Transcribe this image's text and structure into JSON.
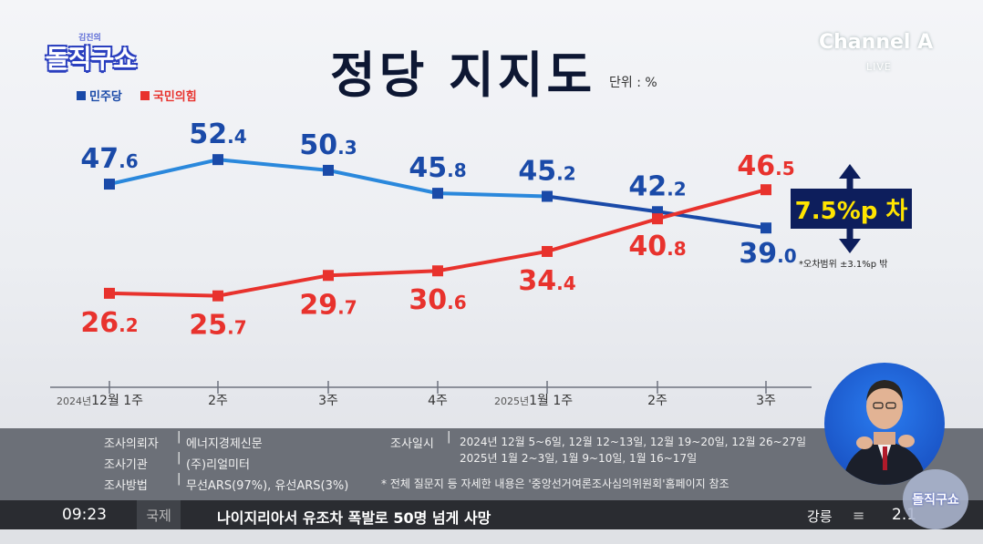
{
  "brand": {
    "show_small": "김진의",
    "show_name": "돌직구쇼",
    "channel": "Channel A",
    "live": "LIVE"
  },
  "title": "정당 지지도",
  "unit": "단위 : %",
  "colors": {
    "democratic": "#1a4aa8",
    "ppp": "#e8322d",
    "blue_line": "#2a88dc",
    "gap_bg": "#0d1e5c",
    "gap_text": "#ffe400"
  },
  "chart_data": {
    "type": "line",
    "title": "정당 지지도",
    "categories": [
      "2024년 12월 1주",
      "2주",
      "3주",
      "4주",
      "2025년 1월 1주",
      "2주",
      "3주"
    ],
    "x_ticks": [
      {
        "prefix": "2024년",
        "main": "12월 1주"
      },
      {
        "prefix": "",
        "main": "2주"
      },
      {
        "prefix": "",
        "main": "3주"
      },
      {
        "prefix": "",
        "main": "4주"
      },
      {
        "prefix": "2025년",
        "main": "1월 1주"
      },
      {
        "prefix": "",
        "main": "2주"
      },
      {
        "prefix": "",
        "main": "3주"
      }
    ],
    "series": [
      {
        "name": "민주당",
        "color": "#1a4aa8",
        "values": [
          47.6,
          52.4,
          50.3,
          45.8,
          45.2,
          42.2,
          39.0
        ]
      },
      {
        "name": "국민의힘",
        "color": "#e8322d",
        "values": [
          26.2,
          25.7,
          29.7,
          30.6,
          34.4,
          40.8,
          46.5
        ]
      }
    ],
    "annotation": "7.5%p 차",
    "note": "*오차범위 ±3.1%p 밖",
    "grid": false,
    "legend": "top-left"
  },
  "footer": {
    "client_label": "조사의뢰자",
    "client_value": "에너지경제신문",
    "agency_label": "조사기관",
    "agency_value": "(주)리얼미터",
    "method_label": "조사방법",
    "method_value": "무선ARS(97%), 유선ARS(3%)",
    "dates_label": "조사일시",
    "dates_line1": "2024년 12월 5~6일, 12월 12~13일, 12월 19~20일, 12월 26~27일",
    "dates_line2": "2025년 1월 2~3일, 1월 9~10일, 1월 16~17일",
    "note": "* 전체 질문지 등 자세한 내용은 '중앙선거여론조사심의위원회'홈페이지 참조"
  },
  "ticker": {
    "time": "09:23",
    "category": "국제",
    "headline": "나이지리아서 유조차 폭발로 50명 넘게 사망",
    "weather_city": "강릉",
    "menu_icon": "≡",
    "temperature": "2.1"
  }
}
